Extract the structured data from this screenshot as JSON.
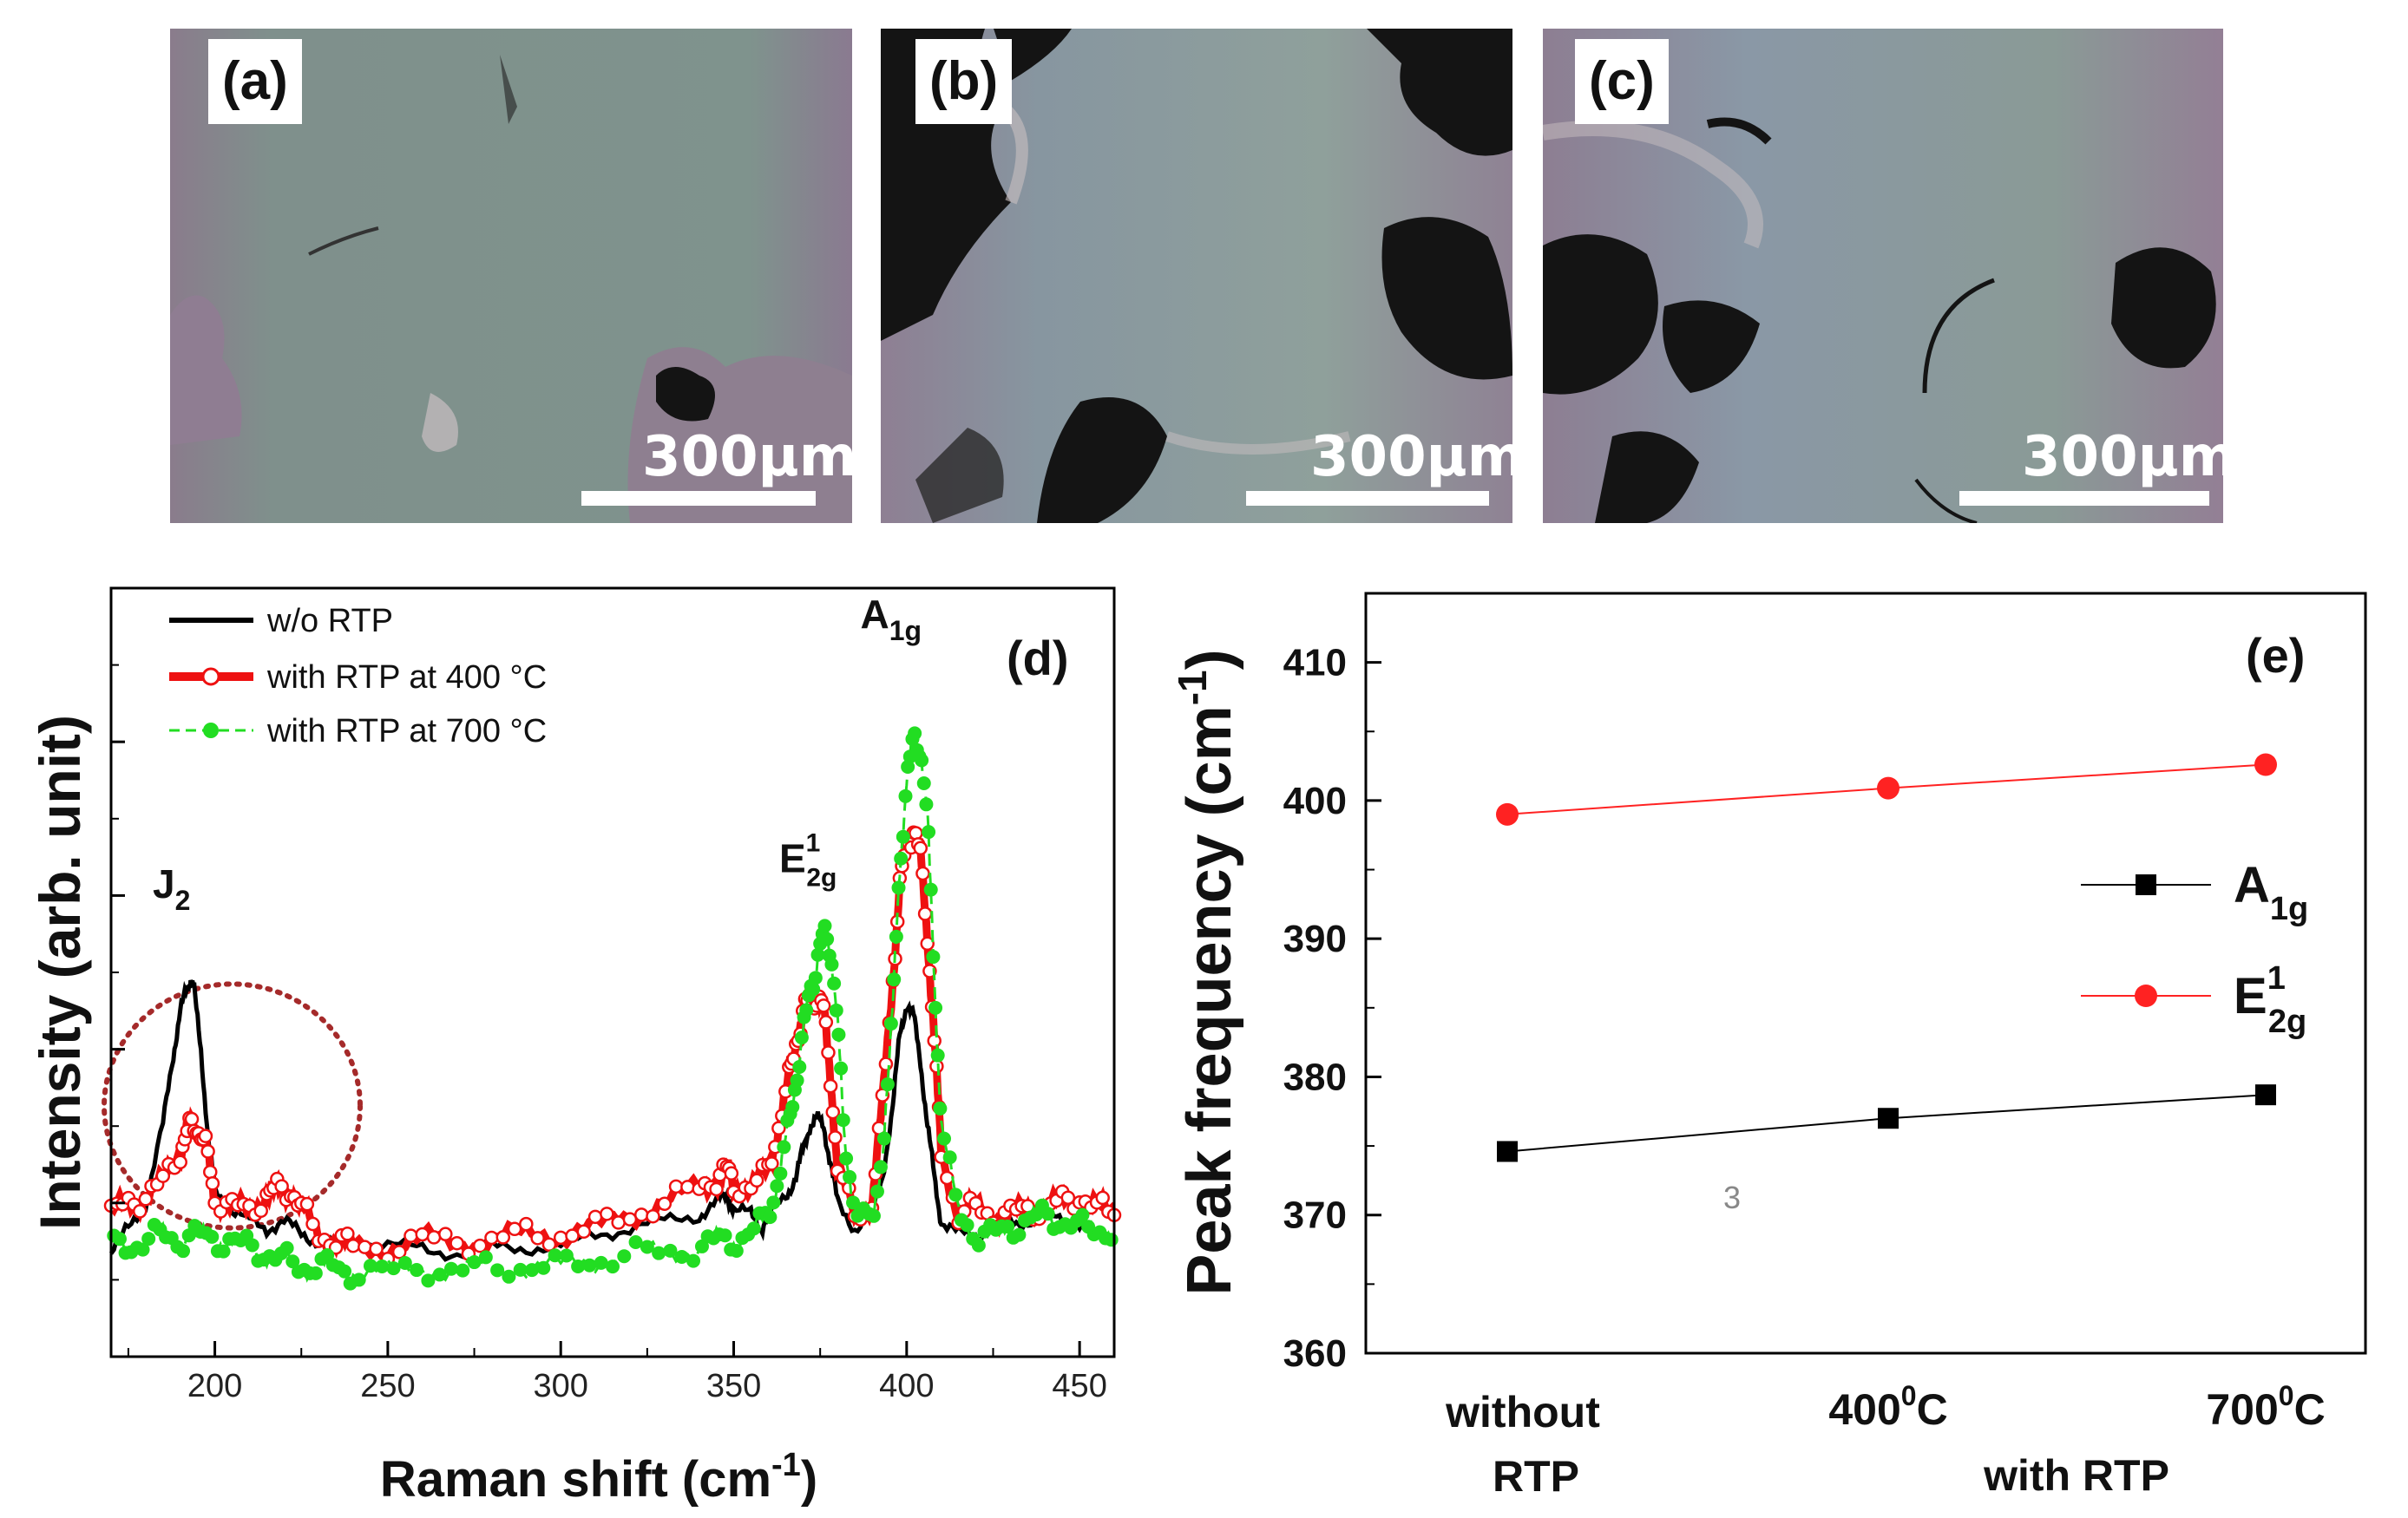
{
  "micrographs": {
    "colors": {
      "film": "#7f948d",
      "substrate": "#8f7f92",
      "void": "#141414",
      "edge": "#c9bfc2",
      "label_bg": "#ffffff",
      "scale_bar": "#ffffff"
    },
    "panels": [
      {
        "label": "(a)",
        "scale_text": "300μm"
      },
      {
        "label": "(b)",
        "scale_text": "300μm"
      },
      {
        "label": "(c)",
        "scale_text": "300μm"
      }
    ]
  },
  "chart_data": [
    {
      "type": "line",
      "panel_label": "(d)",
      "xlabel": "Raman shift (cm",
      "xlabel_sup": "-1",
      "xlabel_close": ")",
      "ylabel": "Intensity (arb. unit)",
      "xlim": [
        170,
        460
      ],
      "ylim": [
        0,
        100
      ],
      "xticks": [
        200,
        250,
        300,
        350,
        400,
        450
      ],
      "yticks_unlabeled": [
        20,
        40,
        60,
        80,
        100
      ],
      "legend_position": "top-left",
      "annotations": [
        {
          "text": "J",
          "sub": "2",
          "x": 193,
          "y": 55
        },
        {
          "text": "E",
          "sup": "1",
          "sub": "2g",
          "x": 377,
          "y": 59
        },
        {
          "text": "A",
          "sub": "1g",
          "x": 401,
          "y": 97
        }
      ],
      "highlight": {
        "shape": "dotted-ellipse",
        "center_x": 205,
        "center_y": 25,
        "radius_x": 37,
        "radius_y": 19,
        "color": "#a52a2a"
      },
      "series": [
        {
          "name": "w/o RTP",
          "color": "#000000",
          "style": "solid",
          "x": [
            170,
            175,
            180,
            185,
            188,
            190,
            192,
            193,
            194,
            196,
            198,
            200,
            205,
            210,
            215,
            220,
            225,
            230,
            235,
            240,
            250,
            260,
            270,
            280,
            290,
            300,
            310,
            320,
            330,
            340,
            345,
            348,
            350,
            355,
            358,
            360,
            365,
            368,
            370,
            372,
            374,
            376,
            378,
            380,
            385,
            390,
            393,
            396,
            398,
            400,
            402,
            404,
            406,
            408,
            410,
            415,
            420,
            425,
            430,
            435,
            440,
            445,
            450,
            455,
            460
          ],
          "y": [
            2,
            6,
            10,
            22,
            33,
            40,
            43,
            45,
            43,
            34,
            20,
            12,
            9,
            7,
            6,
            7,
            5,
            4,
            3,
            4,
            3,
            3,
            2,
            3,
            3,
            3,
            5,
            6,
            7,
            8,
            10,
            11,
            9,
            8,
            6,
            8,
            11,
            14,
            18,
            22,
            23,
            22,
            16,
            10,
            6,
            8,
            14,
            25,
            36,
            41,
            39,
            32,
            22,
            14,
            7,
            5,
            5,
            6,
            7,
            7,
            8,
            8,
            6,
            5,
            5
          ]
        },
        {
          "name": "with RTP at 400 °C",
          "color": "#ee1111",
          "style": "thick-with-open-markers",
          "x": [
            170,
            175,
            180,
            185,
            190,
            192,
            194,
            196,
            198,
            200,
            205,
            210,
            215,
            218,
            222,
            225,
            230,
            235,
            240,
            250,
            260,
            270,
            280,
            290,
            300,
            310,
            320,
            330,
            340,
            345,
            348,
            350,
            355,
            360,
            363,
            366,
            368,
            370,
            372,
            374,
            376,
            378,
            380,
            385,
            390,
            393,
            396,
            398,
            400,
            402,
            404,
            406,
            408,
            410,
            415,
            420,
            425,
            430,
            435,
            440,
            445,
            450,
            455,
            460
          ],
          "y": [
            8,
            10,
            11,
            13,
            18,
            21,
            22,
            21,
            17,
            11,
            9,
            9,
            11,
            12,
            12,
            9,
            5,
            4,
            3,
            3,
            4,
            4,
            4,
            5,
            5,
            6,
            8,
            10,
            12,
            14,
            15,
            13,
            12,
            15,
            22,
            29,
            35,
            39,
            42,
            42,
            40,
            30,
            15,
            8,
            10,
            25,
            45,
            59,
            66,
            68,
            64,
            52,
            35,
            18,
            8,
            9,
            8,
            8,
            9,
            9,
            10,
            11,
            9,
            8
          ]
        },
        {
          "name": "with RTP at 700 °C",
          "color": "#22dd22",
          "style": "dashed-with-filled-markers",
          "x": [
            170,
            175,
            180,
            185,
            190,
            195,
            200,
            205,
            210,
            215,
            220,
            225,
            230,
            235,
            240,
            250,
            260,
            270,
            280,
            290,
            300,
            310,
            320,
            330,
            340,
            345,
            350,
            355,
            360,
            363,
            366,
            368,
            370,
            372,
            374,
            376,
            378,
            380,
            382,
            385,
            390,
            393,
            396,
            398,
            400,
            402,
            404,
            406,
            408,
            410,
            415,
            420,
            425,
            430,
            435,
            440,
            445,
            450,
            455,
            460
          ],
          "y": [
            3,
            3,
            4,
            5,
            4,
            5,
            4,
            4,
            3,
            2,
            1,
            0,
            0,
            0,
            -1,
            -1,
            0,
            -1,
            0,
            0,
            0,
            1,
            2,
            2,
            3,
            4,
            4,
            5,
            8,
            14,
            22,
            29,
            36,
            43,
            47,
            52,
            50,
            38,
            20,
            9,
            6,
            18,
            40,
            62,
            76,
            82,
            81,
            70,
            45,
            22,
            8,
            5,
            5,
            6,
            7,
            8,
            7,
            6,
            6,
            5
          ]
        }
      ]
    },
    {
      "type": "scatter",
      "panel_label": "(e)",
      "ylabel": "Peak frequency (cm",
      "ylabel_sup": "-1",
      "ylabel_close": ")",
      "ylim": [
        360,
        415
      ],
      "yticks": [
        360,
        370,
        380,
        390,
        400,
        410
      ],
      "categories": [
        "without RTP",
        "400°C",
        "700°C"
      ],
      "xlabel_group": "with RTP",
      "legend_position": "right",
      "stray_text": "3",
      "series": [
        {
          "name": "A",
          "name_sub": "1g",
          "marker": "square",
          "color": "#000000",
          "values": [
            374.6,
            377.0,
            378.7
          ]
        },
        {
          "name": "E",
          "name_sup": "1",
          "name_sub": "2g",
          "marker": "circle",
          "color": "#ff2222",
          "values": [
            399.0,
            400.9,
            402.6
          ]
        }
      ]
    }
  ]
}
